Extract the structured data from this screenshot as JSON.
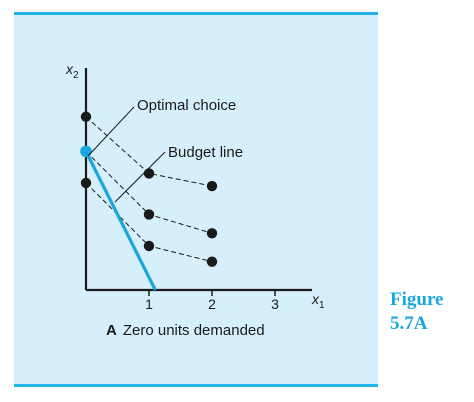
{
  "figure": {
    "label_line1": "Figure",
    "label_line2": "5.7A",
    "label_color": "#1aa7dd",
    "panel_color": "#d5effb",
    "rule_color": "#20b4e6"
  },
  "chart_data": {
    "type": "scatter",
    "x_axis_label": "x",
    "x_axis_subscript": "1",
    "y_axis_label": "x",
    "y_axis_subscript": "2",
    "x_ticks": [
      {
        "value": 1,
        "label": "1"
      },
      {
        "value": 2,
        "label": "2"
      },
      {
        "value": 3,
        "label": "3"
      }
    ],
    "xlim": [
      0,
      3.6
    ],
    "ylim": [
      0,
      3.6
    ],
    "grid": false,
    "indifference_curves": [
      {
        "points": [
          [
            0,
            2.75
          ],
          [
            1,
            1.85
          ],
          [
            2,
            1.65
          ]
        ]
      },
      {
        "points": [
          [
            0,
            2.2
          ],
          [
            1,
            1.2
          ],
          [
            2,
            0.9
          ]
        ]
      },
      {
        "points": [
          [
            0,
            1.7
          ],
          [
            1,
            0.7
          ],
          [
            2,
            0.45
          ]
        ]
      }
    ],
    "budget_line": {
      "points": [
        [
          0,
          2.2
        ],
        [
          1.1,
          0
        ]
      ],
      "color": "#1aa7dd"
    },
    "optimal_point": {
      "x": 0,
      "y": 2.2,
      "color": "#1aa7dd"
    },
    "point_color": "#1a1a1a",
    "annotations": {
      "optimal_choice": "Optimal choice",
      "budget_line": "Budget line"
    },
    "caption_letter": "A",
    "caption_text": "Zero units demanded"
  }
}
